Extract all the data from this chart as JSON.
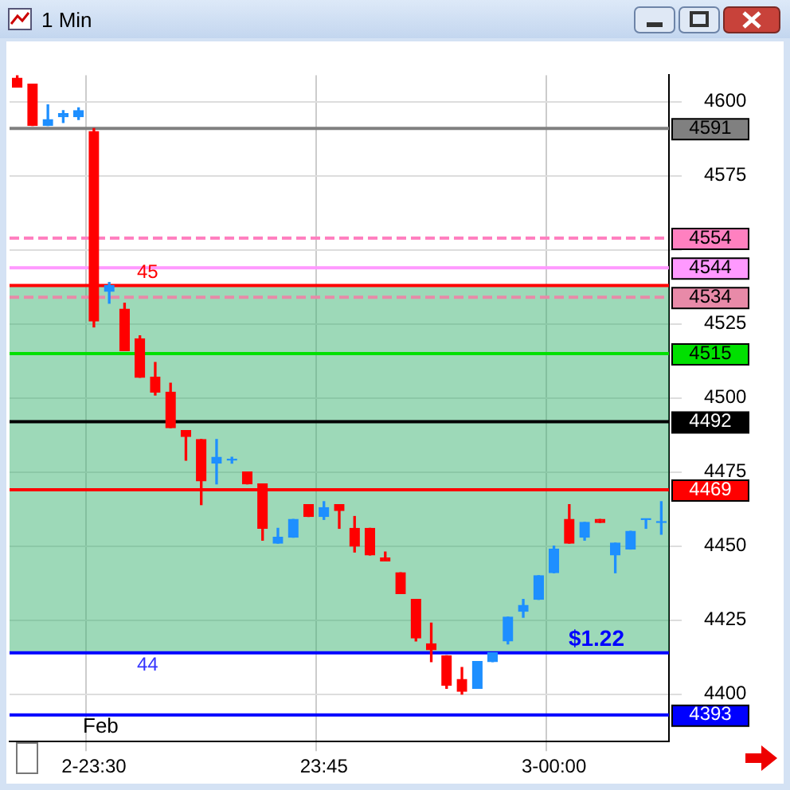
{
  "chart_data": {
    "type": "candlestick",
    "title": "1 Min",
    "categories": [
      null,
      null,
      null,
      null,
      null,
      "2-23:30",
      null,
      null,
      null,
      null,
      null,
      null,
      null,
      null,
      null,
      null,
      null,
      null,
      null,
      null,
      "23:45",
      null,
      null,
      null,
      null,
      null,
      null,
      null,
      null,
      null,
      null,
      null,
      null,
      null,
      null,
      "3-00:00",
      null,
      null,
      null,
      null,
      null,
      null,
      null
    ],
    "ohlc": [
      [
        4608,
        4609,
        4605,
        4605
      ],
      [
        4606,
        4606,
        4592,
        4592
      ],
      [
        4592,
        4599,
        4592,
        4594
      ],
      [
        4595,
        4597,
        4593,
        4596
      ],
      [
        4595,
        4598,
        4594,
        4597
      ],
      [
        4590,
        4591,
        4524,
        4526
      ],
      [
        4536,
        4539,
        4532,
        4538
      ],
      [
        4530,
        4532,
        4516,
        4516
      ],
      [
        4520,
        4521,
        4507,
        4507
      ],
      [
        4507,
        4512,
        4501,
        4502
      ],
      [
        4502,
        4505,
        4490,
        4490
      ],
      [
        4489,
        4489,
        4479,
        4487
      ],
      [
        4486,
        4486,
        4464,
        4472
      ],
      [
        4478,
        4486,
        4471,
        4480
      ],
      [
        4479,
        4480,
        4478,
        4479
      ],
      [
        4475,
        4475,
        4471,
        4471
      ],
      [
        4471,
        4471,
        4452,
        4456
      ],
      [
        4451,
        4456,
        4451,
        4453
      ],
      [
        4453,
        4459,
        4453,
        4459
      ],
      [
        4464,
        4464,
        4460,
        4460
      ],
      [
        4460,
        4465,
        4459,
        4463
      ],
      [
        4464,
        4464,
        4456,
        4462
      ],
      [
        4456,
        4460,
        4448,
        4450
      ],
      [
        4456,
        4456,
        4447,
        4447
      ],
      [
        4446,
        4448,
        4445,
        4445
      ],
      [
        4441,
        4441,
        4434,
        4434
      ],
      [
        4432,
        4432,
        4418,
        4419
      ],
      [
        4417,
        4424,
        4411,
        4415
      ],
      [
        4413,
        4413,
        4402,
        4403
      ],
      [
        4405,
        4409,
        4400,
        4401
      ],
      [
        4402,
        4411,
        4402,
        4411
      ],
      [
        4411,
        4414,
        4411,
        4414
      ],
      [
        4418,
        4426,
        4417,
        4426
      ],
      [
        4428,
        4432,
        4426,
        4430
      ],
      [
        4432,
        4440,
        4432,
        4440
      ],
      [
        4441,
        4450,
        4441,
        4449
      ],
      [
        4459,
        4464,
        4451,
        4451
      ],
      [
        4453,
        4458,
        4452,
        4458
      ],
      [
        4459,
        4459,
        4458,
        4458
      ],
      [
        4447,
        4451,
        4441,
        4451
      ],
      [
        4449,
        4455,
        4449,
        4455
      ],
      [
        4459,
        4459,
        4456,
        4459
      ],
      [
        4458,
        4465,
        4454,
        4458
      ]
    ],
    "colors": [
      "#ff0000",
      "#ff0000",
      "#1e8fff",
      "#1e8fff",
      "#1e8fff",
      "#ff0000",
      "#1e8fff",
      "#ff0000",
      "#ff0000",
      "#ff0000",
      "#ff0000",
      "#ff0000",
      "#ff0000",
      "#1e8fff",
      "#1e8fff",
      "#ff0000",
      "#ff0000",
      "#1e8fff",
      "#1e8fff",
      "#ff0000",
      "#1e8fff",
      "#ff0000",
      "#ff0000",
      "#ff0000",
      "#ff0000",
      "#ff0000",
      "#ff0000",
      "#ff0000",
      "#ff0000",
      "#ff0000",
      "#1e8fff",
      "#1e8fff",
      "#1e8fff",
      "#1e8fff",
      "#1e8fff",
      "#1e8fff",
      "#ff0000",
      "#1e8fff",
      "#ff0000",
      "#1e8fff",
      "#1e8fff",
      "#1e8fff",
      "#1e8fff"
    ],
    "ylim": [
      4384,
      4609
    ],
    "yticks": [
      4400,
      4425,
      4450,
      4475,
      4500,
      4525,
      {
        "value": 4550,
        "label": null
      },
      4575,
      4600
    ],
    "grid": true,
    "ref_lines": [
      {
        "axis": "y",
        "value": 4591,
        "label": "4591",
        "color": "#808080"
      },
      {
        "axis": "y",
        "value": 4554,
        "label": "4554",
        "color": "#ff80c0",
        "line_style": "dashed"
      },
      {
        "axis": "y",
        "value": 4544,
        "label": "4544",
        "color": "#ff99ff"
      },
      {
        "axis": "y",
        "value": 4538,
        "color": "#ff0000"
      },
      {
        "axis": "y",
        "value": 4534,
        "label": "4534",
        "color": "#e88aa8",
        "line_style": "dashed"
      },
      {
        "axis": "y",
        "value": 4515,
        "label": "4515",
        "color": "#00e000"
      },
      {
        "axis": "y",
        "value": 4492,
        "label": "4492",
        "color": "#000000"
      },
      {
        "axis": "y",
        "value": 4469,
        "label": "4469",
        "color": "#ff0000"
      },
      {
        "axis": "y",
        "value": 4414,
        "color": "#0000ff"
      },
      {
        "axis": "y",
        "value": 4393,
        "label": "4393",
        "color": "#0000ff"
      }
    ],
    "bands": [
      {
        "axis": "y",
        "from": 4414,
        "to": 4538,
        "color": "#3cb371"
      }
    ],
    "annotations": [
      {
        "text": "45",
        "y": 4538
      },
      {
        "text": "44",
        "y": 4414
      },
      {
        "text": "$1.22",
        "y": 4414
      },
      "Feb"
    ]
  }
}
